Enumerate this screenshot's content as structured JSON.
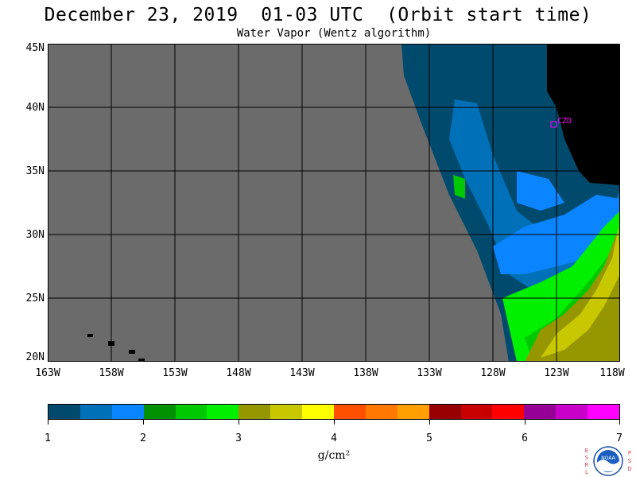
{
  "title": "December 23, 2019  01-03 UTC  (Orbit start time)",
  "subtitle": "Water Vapor (Wentz algorithm)",
  "map": {
    "lat_labels": [
      "45N",
      "40N",
      "35N",
      "30N",
      "25N",
      "20N"
    ],
    "lon_labels": [
      "163W",
      "158W",
      "153W",
      "148W",
      "143W",
      "138W",
      "133W",
      "128W",
      "123W",
      "118W"
    ],
    "station_label": "CZD",
    "colors": {
      "no_data": "#6b6b6b",
      "land": "#000000",
      "station": "#ff00ff",
      "grid": "#000000"
    }
  },
  "colorbar": {
    "colors": [
      "#004a6e",
      "#0071b8",
      "#0a84ff",
      "#009100",
      "#00c800",
      "#00f000",
      "#969600",
      "#c8c800",
      "#ffff00",
      "#ff5000",
      "#ff7800",
      "#ffa000",
      "#960000",
      "#c80000",
      "#ff0000",
      "#960096",
      "#c800c8",
      "#ff00ff"
    ],
    "tick_labels": [
      "1",
      "2",
      "3",
      "4",
      "5",
      "6",
      "7"
    ],
    "units": "g/cm²"
  },
  "logo": {
    "left_letters": [
      "E",
      "S",
      "R",
      "L"
    ],
    "right_letters": [
      "P",
      "S",
      "D"
    ],
    "name": "NOAA"
  }
}
